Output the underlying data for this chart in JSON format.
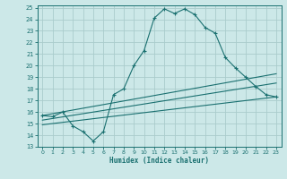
{
  "xlabel": "Humidex (Indice chaleur)",
  "xlim": [
    -0.5,
    23.5
  ],
  "ylim": [
    13,
    25.2
  ],
  "yticks": [
    13,
    14,
    15,
    16,
    17,
    18,
    19,
    20,
    21,
    22,
    23,
    24,
    25
  ],
  "xticks": [
    0,
    1,
    2,
    3,
    4,
    5,
    6,
    7,
    8,
    9,
    10,
    11,
    12,
    13,
    14,
    15,
    16,
    17,
    18,
    19,
    20,
    21,
    22,
    23
  ],
  "bg_color": "#cce8e8",
  "grid_color": "#aacccc",
  "line_color": "#1a7070",
  "line1_x": [
    0,
    1,
    2,
    3,
    4,
    5,
    6,
    7,
    8,
    9,
    10,
    11,
    12,
    13,
    14,
    15,
    16,
    17,
    18,
    19,
    20,
    21,
    22,
    23
  ],
  "line1_y": [
    15.7,
    15.6,
    16.0,
    14.8,
    14.3,
    13.5,
    14.3,
    17.5,
    18.0,
    20.0,
    21.3,
    24.1,
    24.9,
    24.5,
    24.9,
    24.4,
    23.3,
    22.8,
    20.7,
    19.8,
    19.0,
    18.2,
    17.5,
    17.3
  ],
  "line2_x": [
    0,
    23
  ],
  "line2_y": [
    15.7,
    19.3
  ],
  "line3_x": [
    0,
    23
  ],
  "line3_y": [
    15.3,
    18.5
  ],
  "line4_x": [
    0,
    23
  ],
  "line4_y": [
    14.9,
    17.3
  ]
}
